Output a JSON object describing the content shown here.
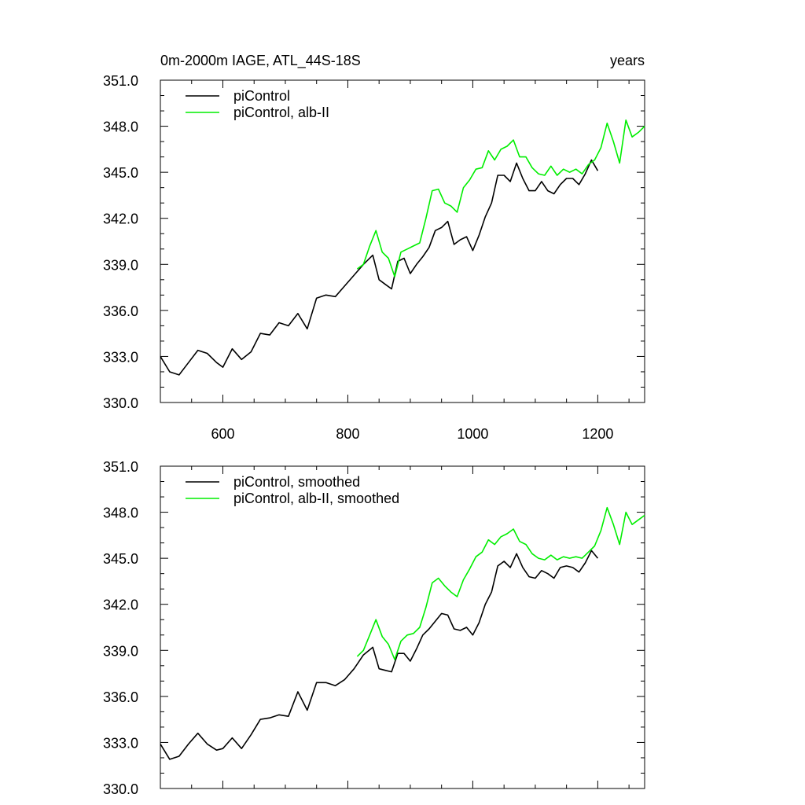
{
  "figure": {
    "title_left": "0m-2000m IAGE, ATL_44S-18S",
    "title_right": "years"
  },
  "colors": {
    "piControl": "#000000",
    "alb": "#00ee00",
    "background": "#ffffff"
  },
  "chart_data": [
    {
      "type": "line",
      "xlim": [
        500,
        1275
      ],
      "ylim": [
        330,
        351
      ],
      "x_ticks": [
        600,
        800,
        1000,
        1200
      ],
      "y_ticks": [
        "330.0",
        "333.0",
        "336.0",
        "339.0",
        "342.0",
        "345.0",
        "348.0",
        "351.0"
      ],
      "show_x_tick_labels": true,
      "legend_position": "top-left",
      "series": [
        {
          "name": "piControl",
          "color": "#000000",
          "smoothed": false,
          "x": [
            500,
            515,
            530,
            545,
            560,
            575,
            590,
            600,
            615,
            630,
            645,
            660,
            675,
            690,
            705,
            720,
            735,
            750,
            765,
            780,
            795,
            810,
            825,
            840,
            850,
            860,
            870,
            880,
            890,
            900,
            910,
            920,
            930,
            940,
            950,
            960,
            970,
            980,
            990,
            1000,
            1010,
            1020,
            1030,
            1040,
            1050,
            1060,
            1070,
            1080,
            1090,
            1100,
            1110,
            1120,
            1130,
            1140,
            1150,
            1160,
            1170,
            1180,
            1190,
            1200
          ],
          "y": [
            333.0,
            332.0,
            331.8,
            332.6,
            333.4,
            333.2,
            332.6,
            332.3,
            333.5,
            332.8,
            333.3,
            334.5,
            334.4,
            335.2,
            335.0,
            335.8,
            334.8,
            336.8,
            337.0,
            336.9,
            337.6,
            338.3,
            339.0,
            339.6,
            338.0,
            337.7,
            337.4,
            339.2,
            339.4,
            338.4,
            339.0,
            339.5,
            340.1,
            341.2,
            341.4,
            341.8,
            340.3,
            340.6,
            340.8,
            339.9,
            340.9,
            342.1,
            343.0,
            344.8,
            344.8,
            344.4,
            345.6,
            344.6,
            343.8,
            343.8,
            344.4,
            343.8,
            343.6,
            344.2,
            344.6,
            344.6,
            344.2,
            344.9,
            345.8,
            345.1
          ]
        },
        {
          "name": "piControl, alb-II",
          "color": "#00ee00",
          "smoothed": false,
          "x": [
            815,
            825,
            835,
            845,
            855,
            865,
            875,
            885,
            895,
            905,
            915,
            925,
            935,
            945,
            955,
            965,
            975,
            985,
            995,
            1005,
            1015,
            1025,
            1035,
            1045,
            1055,
            1065,
            1075,
            1085,
            1095,
            1105,
            1115,
            1125,
            1135,
            1145,
            1155,
            1165,
            1175,
            1185,
            1195,
            1205,
            1215,
            1225,
            1235,
            1245,
            1255,
            1265,
            1275
          ],
          "y": [
            338.7,
            339.0,
            340.2,
            341.2,
            339.8,
            339.4,
            338.2,
            339.8,
            340.0,
            340.2,
            340.4,
            342.0,
            343.8,
            343.9,
            343.0,
            342.8,
            342.4,
            344.0,
            344.5,
            345.2,
            345.3,
            346.4,
            345.8,
            346.5,
            346.7,
            347.1,
            346.0,
            346.0,
            345.3,
            344.9,
            344.8,
            345.4,
            344.8,
            345.2,
            345.0,
            345.2,
            344.9,
            345.5,
            345.8,
            346.6,
            348.2,
            347.0,
            345.6,
            348.4,
            347.3,
            347.6,
            348.0
          ]
        }
      ]
    },
    {
      "type": "line",
      "xlim": [
        500,
        1275
      ],
      "ylim": [
        330,
        351
      ],
      "x_ticks": [
        600,
        800,
        1000,
        1200
      ],
      "y_ticks": [
        "330.0",
        "333.0",
        "336.0",
        "339.0",
        "342.0",
        "345.0",
        "348.0",
        "351.0"
      ],
      "show_x_tick_labels": false,
      "legend_position": "top-left",
      "series": [
        {
          "name": "piControl, smoothed",
          "color": "#000000",
          "smoothed": true,
          "x": [
            500,
            515,
            530,
            545,
            560,
            575,
            590,
            600,
            615,
            630,
            645,
            660,
            675,
            690,
            705,
            720,
            735,
            750,
            765,
            780,
            795,
            810,
            825,
            840,
            850,
            860,
            870,
            880,
            890,
            900,
            910,
            920,
            930,
            940,
            950,
            960,
            970,
            980,
            990,
            1000,
            1010,
            1020,
            1030,
            1040,
            1050,
            1060,
            1070,
            1080,
            1090,
            1100,
            1110,
            1120,
            1130,
            1140,
            1150,
            1160,
            1170,
            1180,
            1190,
            1200
          ],
          "y": [
            332.9,
            331.9,
            332.1,
            332.9,
            333.6,
            332.9,
            332.5,
            332.6,
            333.3,
            332.6,
            333.5,
            334.5,
            334.6,
            334.8,
            334.7,
            336.3,
            335.1,
            336.9,
            336.9,
            336.7,
            337.1,
            337.8,
            338.7,
            339.2,
            337.8,
            337.7,
            337.6,
            338.8,
            338.8,
            338.3,
            339.1,
            340.0,
            340.4,
            340.9,
            341.4,
            341.3,
            340.4,
            340.3,
            340.5,
            340.0,
            340.8,
            342.0,
            342.8,
            344.5,
            344.8,
            344.4,
            345.3,
            344.4,
            343.8,
            343.7,
            344.2,
            344.0,
            343.7,
            344.4,
            344.5,
            344.4,
            344.1,
            344.7,
            345.5,
            345.0
          ]
        },
        {
          "name": "piControl, alb-II, smoothed",
          "color": "#00ee00",
          "smoothed": true,
          "x": [
            815,
            825,
            835,
            845,
            855,
            865,
            875,
            885,
            895,
            905,
            915,
            925,
            935,
            945,
            955,
            965,
            975,
            985,
            995,
            1005,
            1015,
            1025,
            1035,
            1045,
            1055,
            1065,
            1075,
            1085,
            1095,
            1105,
            1115,
            1125,
            1135,
            1145,
            1155,
            1165,
            1175,
            1185,
            1195,
            1205,
            1215,
            1225,
            1235,
            1245,
            1255,
            1265,
            1275
          ],
          "y": [
            338.6,
            339.0,
            340.0,
            341.0,
            339.9,
            339.4,
            338.4,
            339.6,
            340.0,
            340.1,
            340.5,
            341.8,
            343.4,
            343.7,
            343.2,
            342.8,
            342.5,
            343.6,
            344.3,
            345.1,
            345.4,
            346.2,
            345.9,
            346.4,
            346.6,
            346.9,
            346.1,
            345.9,
            345.3,
            345.0,
            344.9,
            345.2,
            344.9,
            345.1,
            345.0,
            345.1,
            345.0,
            345.4,
            345.8,
            346.8,
            348.3,
            347.2,
            345.9,
            348.0,
            347.2,
            347.5,
            347.8
          ]
        }
      ]
    }
  ]
}
